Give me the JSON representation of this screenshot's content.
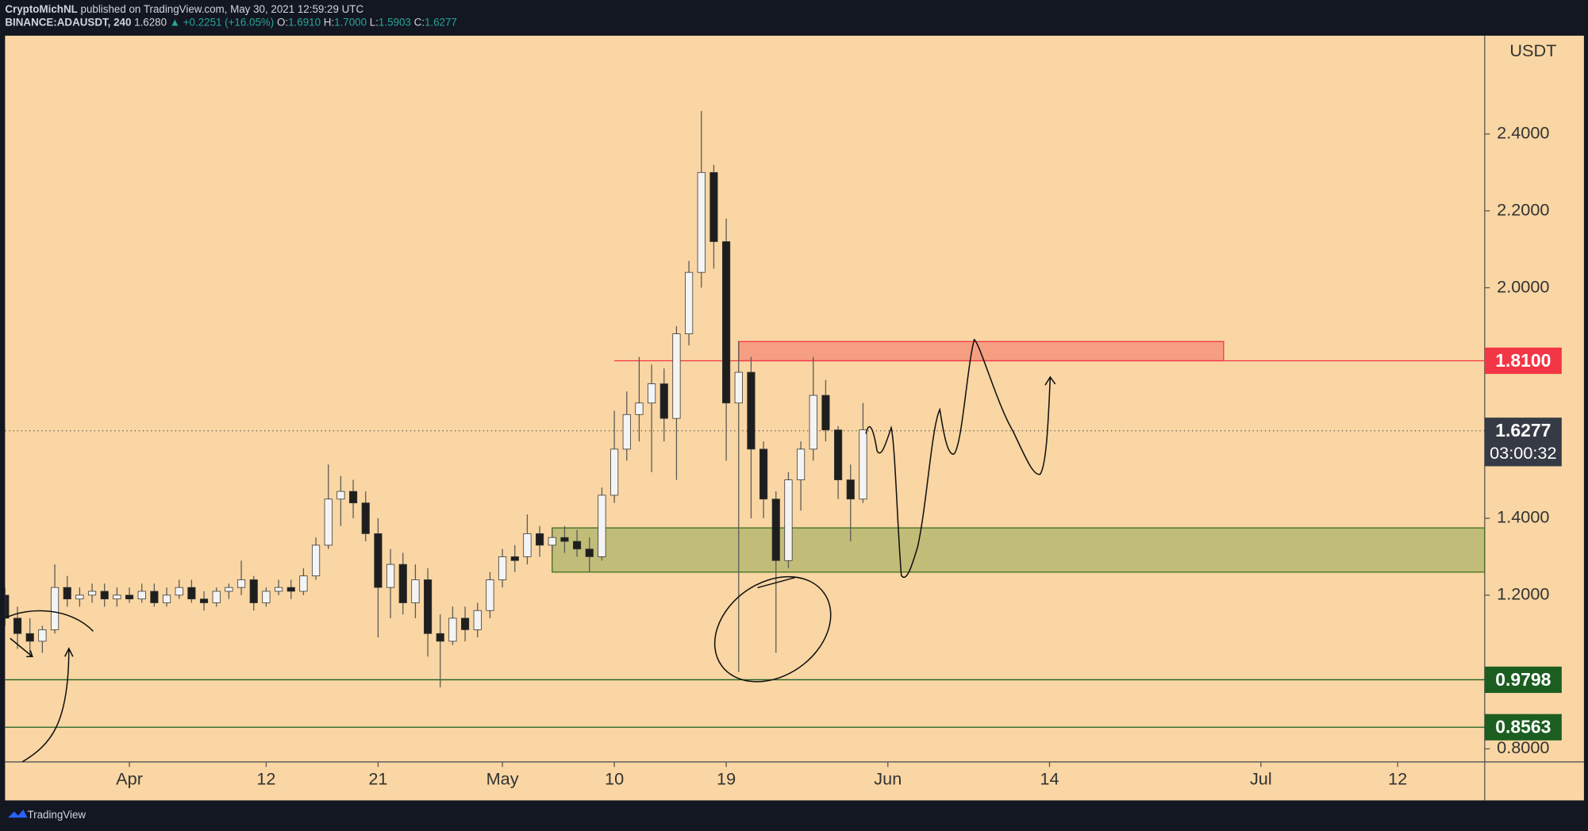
{
  "chart_data": {
    "type": "candlestick",
    "header": {
      "author": "CryptoMichNL",
      "published": "published on TradingView.com, May 30, 2021 12:59:29 UTC",
      "symbol": "BINANCE:ADAUSDT, 240",
      "last": "1.6280",
      "change": "▲ +0.2251 (+16.05%)",
      "ohlc": [
        "O:",
        "1.6910",
        "H:",
        "1.7000",
        "L:",
        "1.5903",
        "C:",
        "1.6277"
      ]
    },
    "unit": "USDT",
    "footer": "TradingView",
    "up_color": "#f4f4f4",
    "down_color": "#1e1e1e",
    "wick_color": "#5a5a5a",
    "x": [
      "Mar 22",
      "Mar 23",
      "Mar 24",
      "Mar 25",
      "Mar 26",
      "Mar 27",
      "Mar 28",
      "Mar 29",
      "Mar 30",
      "Mar 31",
      "Apr 1",
      "Apr 2",
      "Apr 3",
      "Apr 4",
      "Apr 5",
      "Apr 6",
      "Apr 7",
      "Apr 8",
      "Apr 9",
      "Apr 10",
      "Apr 11",
      "Apr 12",
      "Apr 13",
      "Apr 14",
      "Apr 15",
      "Apr 16",
      "Apr 17",
      "Apr 18",
      "Apr 19",
      "Apr 20",
      "Apr 21",
      "Apr 22",
      "Apr 23",
      "Apr 24",
      "Apr 25",
      "Apr 26",
      "Apr 27",
      "Apr 28",
      "Apr 29",
      "Apr 30",
      "May 1",
      "May 2",
      "May 3",
      "May 4",
      "May 5",
      "May 6",
      "May 7",
      "May 8",
      "May 9",
      "May 10",
      "May 11",
      "May 12",
      "May 13",
      "May 14",
      "May 15",
      "May 16",
      "May 17",
      "May 18",
      "May 19",
      "May 20",
      "May 21",
      "May 22",
      "May 23",
      "May 24",
      "May 25",
      "May 26",
      "May 27",
      "May 28",
      "May 29",
      "May 30"
    ],
    "open": [
      1.2,
      1.14,
      1.1,
      1.08,
      1.11,
      1.22,
      1.19,
      1.2,
      1.21,
      1.19,
      1.2,
      1.19,
      1.21,
      1.18,
      1.2,
      1.22,
      1.19,
      1.18,
      1.21,
      1.22,
      1.24,
      1.18,
      1.21,
      1.22,
      1.21,
      1.25,
      1.33,
      1.45,
      1.47,
      1.44,
      1.36,
      1.22,
      1.28,
      1.18,
      1.24,
      1.1,
      1.08,
      1.14,
      1.11,
      1.16,
      1.24,
      1.3,
      1.3,
      1.36,
      1.33,
      1.35,
      1.34,
      1.32,
      1.3,
      1.46,
      1.58,
      1.67,
      1.7,
      1.75,
      1.66,
      1.88,
      2.04,
      2.3,
      2.12,
      1.7,
      1.78,
      1.58,
      1.45,
      1.29,
      1.5,
      1.58,
      1.72,
      1.63,
      1.5,
      1.45
    ],
    "high": [
      1.22,
      1.17,
      1.14,
      1.12,
      1.28,
      1.25,
      1.22,
      1.23,
      1.23,
      1.22,
      1.22,
      1.23,
      1.23,
      1.22,
      1.24,
      1.24,
      1.21,
      1.22,
      1.23,
      1.29,
      1.25,
      1.22,
      1.24,
      1.24,
      1.27,
      1.35,
      1.54,
      1.51,
      1.5,
      1.47,
      1.4,
      1.32,
      1.31,
      1.28,
      1.27,
      1.15,
      1.17,
      1.17,
      1.18,
      1.26,
      1.32,
      1.33,
      1.41,
      1.38,
      1.37,
      1.38,
      1.37,
      1.35,
      1.48,
      1.68,
      1.73,
      1.82,
      1.8,
      1.79,
      1.9,
      2.07,
      2.46,
      2.32,
      2.18,
      1.86,
      1.82,
      1.6,
      1.47,
      1.52,
      1.6,
      1.82,
      1.76,
      1.64,
      1.54,
      1.7
    ],
    "low": [
      1.12,
      1.06,
      1.04,
      1.05,
      1.1,
      1.17,
      1.17,
      1.18,
      1.17,
      1.17,
      1.18,
      1.18,
      1.17,
      1.17,
      1.19,
      1.18,
      1.16,
      1.17,
      1.19,
      1.2,
      1.16,
      1.17,
      1.2,
      1.19,
      1.2,
      1.24,
      1.32,
      1.38,
      1.4,
      1.34,
      1.09,
      1.14,
      1.15,
      1.14,
      1.04,
      0.96,
      1.07,
      1.08,
      1.09,
      1.14,
      1.22,
      1.26,
      1.28,
      1.3,
      1.31,
      1.31,
      1.3,
      1.26,
      1.29,
      1.44,
      1.55,
      1.6,
      1.52,
      1.6,
      1.5,
      1.85,
      2.0,
      2.05,
      1.55,
      1.0,
      1.4,
      1.4,
      1.05,
      1.27,
      1.42,
      1.55,
      1.6,
      1.45,
      1.34,
      1.44
    ],
    "close": [
      1.14,
      1.1,
      1.08,
      1.11,
      1.22,
      1.19,
      1.2,
      1.21,
      1.19,
      1.2,
      1.19,
      1.21,
      1.18,
      1.2,
      1.22,
      1.19,
      1.18,
      1.21,
      1.22,
      1.24,
      1.18,
      1.21,
      1.22,
      1.21,
      1.25,
      1.33,
      1.45,
      1.47,
      1.44,
      1.36,
      1.22,
      1.28,
      1.18,
      1.24,
      1.1,
      1.08,
      1.14,
      1.11,
      1.16,
      1.24,
      1.3,
      1.29,
      1.36,
      1.33,
      1.35,
      1.34,
      1.32,
      1.3,
      1.46,
      1.58,
      1.67,
      1.7,
      1.75,
      1.66,
      1.88,
      2.04,
      2.3,
      2.12,
      1.7,
      1.78,
      1.58,
      1.45,
      1.29,
      1.5,
      1.58,
      1.72,
      1.63,
      1.5,
      1.45,
      1.63
    ],
    "xlim": [
      "Mar 22",
      "Jul 19"
    ],
    "xticks": [
      {
        "value": "Apr 1",
        "label": "Apr"
      },
      {
        "value": "Apr 12",
        "label": "12"
      },
      {
        "value": "Apr 21",
        "label": "21"
      },
      {
        "value": "May 1",
        "label": "May"
      },
      {
        "value": "May 10",
        "label": "10"
      },
      {
        "value": "May 19",
        "label": "19"
      },
      {
        "value": "Jun 1",
        "label": "Jun"
      },
      {
        "value": "Jun 14",
        "label": "14"
      },
      {
        "value": "Jul 1",
        "label": "Jul"
      },
      {
        "value": "Jul 12",
        "label": "12"
      }
    ],
    "ylim": [
      0.766,
      2.656
    ],
    "yticks": [
      {
        "value": 0.8,
        "label": "0.8000"
      },
      {
        "value": 1.2,
        "label": "1.2000"
      },
      {
        "value": 1.4,
        "label": "1.4000"
      },
      {
        "value": 2.0,
        "label": "2.0000"
      },
      {
        "value": 2.2,
        "label": "2.2000"
      },
      {
        "value": 2.4,
        "label": "2.4000"
      }
    ],
    "levels": [
      {
        "value": 1.81,
        "label": "1.8100",
        "color": "#f23645",
        "from": "May 10"
      },
      {
        "value": 0.9798,
        "label": "0.9798",
        "color": "#1b5e20",
        "from": "Mar 22"
      },
      {
        "value": 0.8563,
        "label": "0.8563",
        "color": "#1b5e20",
        "from": "Mar 22"
      }
    ],
    "current": {
      "value": 1.6277,
      "label": "1.6277",
      "countdown": "03:00:32",
      "color": "#363a45"
    },
    "zones": [
      {
        "from": "May 20",
        "to": "Jun 28",
        "low": 1.81,
        "high": 1.86,
        "color": "rgba(242,54,69,0.35)",
        "border": "#f23645"
      },
      {
        "from": "May 5",
        "to": "Jul 19",
        "low": 1.26,
        "high": 1.375,
        "color": "rgba(90,140,40,0.35)",
        "border": "#3c6e1e"
      }
    ]
  }
}
